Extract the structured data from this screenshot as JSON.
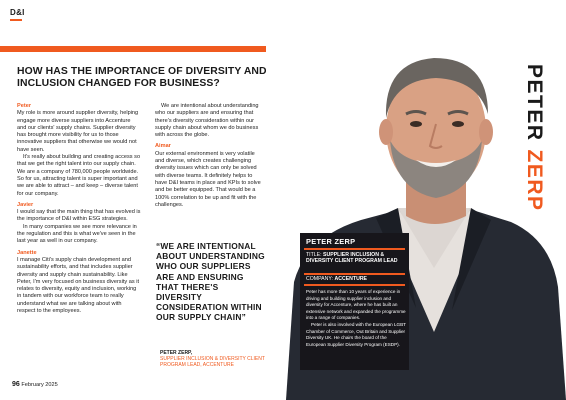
{
  "colors": {
    "accent": "#f05a1f",
    "dark": "#17161b",
    "text": "#1a1a1a"
  },
  "section_tag": "D&I",
  "headline": "HOW HAS THE IMPORTANCE OF DIVERSITY AND INCLUSION CHANGED FOR BUSINESS?",
  "column1": {
    "s1_name": "Peter",
    "s1_p1": "My role is more around supplier diversity, helping engage more diverse suppliers into Accenture and our clients' supply chains. Supplier diversity has brought more visibility for us to those innovative suppliers that otherwise we would not have seen.",
    "s1_p2": "It's really about building and creating access so that we get the right talent into our supply chain. We are a company of 780,000 people worldwide. So for us, attracting talent is super important and we are able to attract – and keep – diverse talent for our company.",
    "s2_name": "Javier",
    "s2_p1": "I would say that the main thing that has evolved is the importance of D&I within ESG strategies.",
    "s2_p2": "In many companies we see more relevance in the regulation and this is what we've seen in the last year as well in our company.",
    "s3_name": "Janette",
    "s3_p1": "I manage Citi's supply chain development and sustainability efforts, and that includes supplier diversity and supply chain sustainability. Like Peter, I'm very focused on business diversity as it relates to diversity, equity and inclusion, working in tandem with our workforce team to really understand what we are talking about with respect to the employees."
  },
  "column2": {
    "p1": "We are intentional about understanding who our suppliers are and ensuring that there's diversity consideration within our supply chain about whom we do business with across the globe.",
    "s_name": "Aimar",
    "p2": "Our external environment is very volatile and diverse, which creates challenging diversity issues which can only be solved with diverse teams. It definitely helps to have D&I teams in place and KPIs to solve and be better equipped. That would be a 100% correlation to be up and fit with the challenges."
  },
  "pull_quote": {
    "text": "“WE ARE INTENTIONAL ABOUT UNDERSTANDING WHO OUR SUPPLIERS ARE AND ENSURING THAT THERE'S DIVERSITY CONSIDERATION WITHIN OUR SUPPLY CHAIN”",
    "name": "PETER ZERP,",
    "role": "SUPPLIER INCLUSION & DIVERSITY CLIENT PROGRAM LEAD, ACCENTURE"
  },
  "vertical_name": {
    "first": "PETER",
    "last": "ZERP"
  },
  "profile": {
    "name": "PETER ZERP",
    "title_label": "TITLE:",
    "title_value": "SUPPLIER INCLUSION & DIVERSITY CLIENT PROGRAM LEAD",
    "company_label": "COMPANY:",
    "company_value": "ACCENTURE",
    "bio_p1": "Peter has more than 10 years of experience in driving and building supplier inclusion and diversity for Accenture, where he has built an extensive network and expanded the programme into a range of companies.",
    "bio_p2": "Peter is also involved with the European LGBT Chamber of Commerce, Out Britain and Supplier Diversity UK. He chairs the board of the European Supplier Diversity Program (ESDP)."
  },
  "folio": {
    "page": "96",
    "issue": "February 2025"
  }
}
